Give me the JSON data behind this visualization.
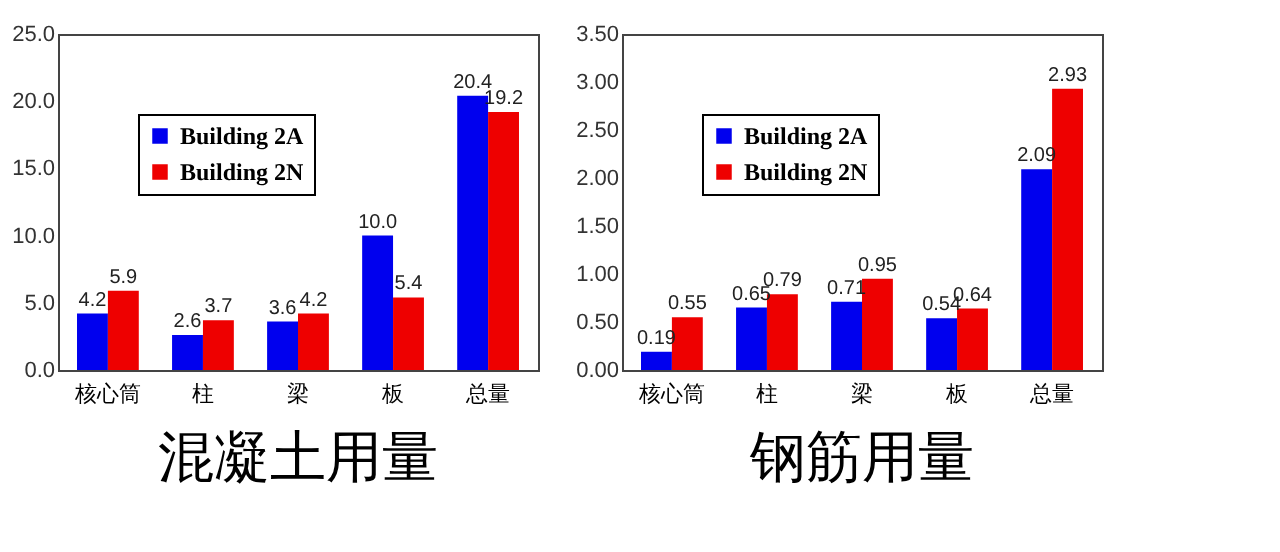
{
  "chart_data": [
    {
      "type": "bar",
      "title": "混凝土用量",
      "categories": [
        "核心筒",
        "柱",
        "梁",
        "板",
        "总量"
      ],
      "series": [
        {
          "name": "Building 2A",
          "color": "#0000ee",
          "values": [
            4.2,
            2.6,
            3.6,
            10.0,
            20.4
          ],
          "value_labels": [
            "4.2",
            "2.6",
            "3.6",
            "10.0",
            "20.4"
          ]
        },
        {
          "name": "Building 2N",
          "color": "#ee0000",
          "values": [
            5.9,
            3.7,
            4.2,
            5.4,
            19.2
          ],
          "value_labels": [
            "5.9",
            "3.7",
            "4.2",
            "5.4",
            "19.2"
          ]
        }
      ],
      "ylim": [
        0,
        25
      ],
      "yticks": [
        {
          "value": 0,
          "label": "0.0"
        },
        {
          "value": 5,
          "label": "5.0"
        },
        {
          "value": 10,
          "label": "10.0"
        },
        {
          "value": 15,
          "label": "15.0"
        },
        {
          "value": 20,
          "label": "20.0"
        },
        {
          "value": 25,
          "label": "25.0"
        }
      ],
      "grid": false,
      "legend": "top left"
    },
    {
      "type": "bar",
      "title": "钢筋用量",
      "categories": [
        "核心筒",
        "柱",
        "梁",
        "板",
        "总量"
      ],
      "series": [
        {
          "name": "Building 2A",
          "color": "#0000ee",
          "values": [
            0.19,
            0.65,
            0.71,
            0.54,
            2.09
          ],
          "value_labels": [
            "0.19",
            "0.65",
            "0.71",
            "0.54",
            "2.09"
          ]
        },
        {
          "name": "Building 2N",
          "color": "#ee0000",
          "values": [
            0.55,
            0.79,
            0.95,
            0.64,
            2.93
          ],
          "value_labels": [
            "0.55",
            "0.79",
            "0.95",
            "0.64",
            "2.93"
          ]
        }
      ],
      "ylim": [
        0,
        3.5
      ],
      "yticks": [
        {
          "value": 0,
          "label": "0.00"
        },
        {
          "value": 0.5,
          "label": "0.50"
        },
        {
          "value": 1,
          "label": "1.00"
        },
        {
          "value": 1.5,
          "label": "1.50"
        },
        {
          "value": 2,
          "label": "2.00"
        },
        {
          "value": 2.5,
          "label": "2.50"
        },
        {
          "value": 3,
          "label": "3.00"
        },
        {
          "value": 3.5,
          "label": "3.50"
        }
      ],
      "grid": false,
      "legend": "top left"
    }
  ]
}
